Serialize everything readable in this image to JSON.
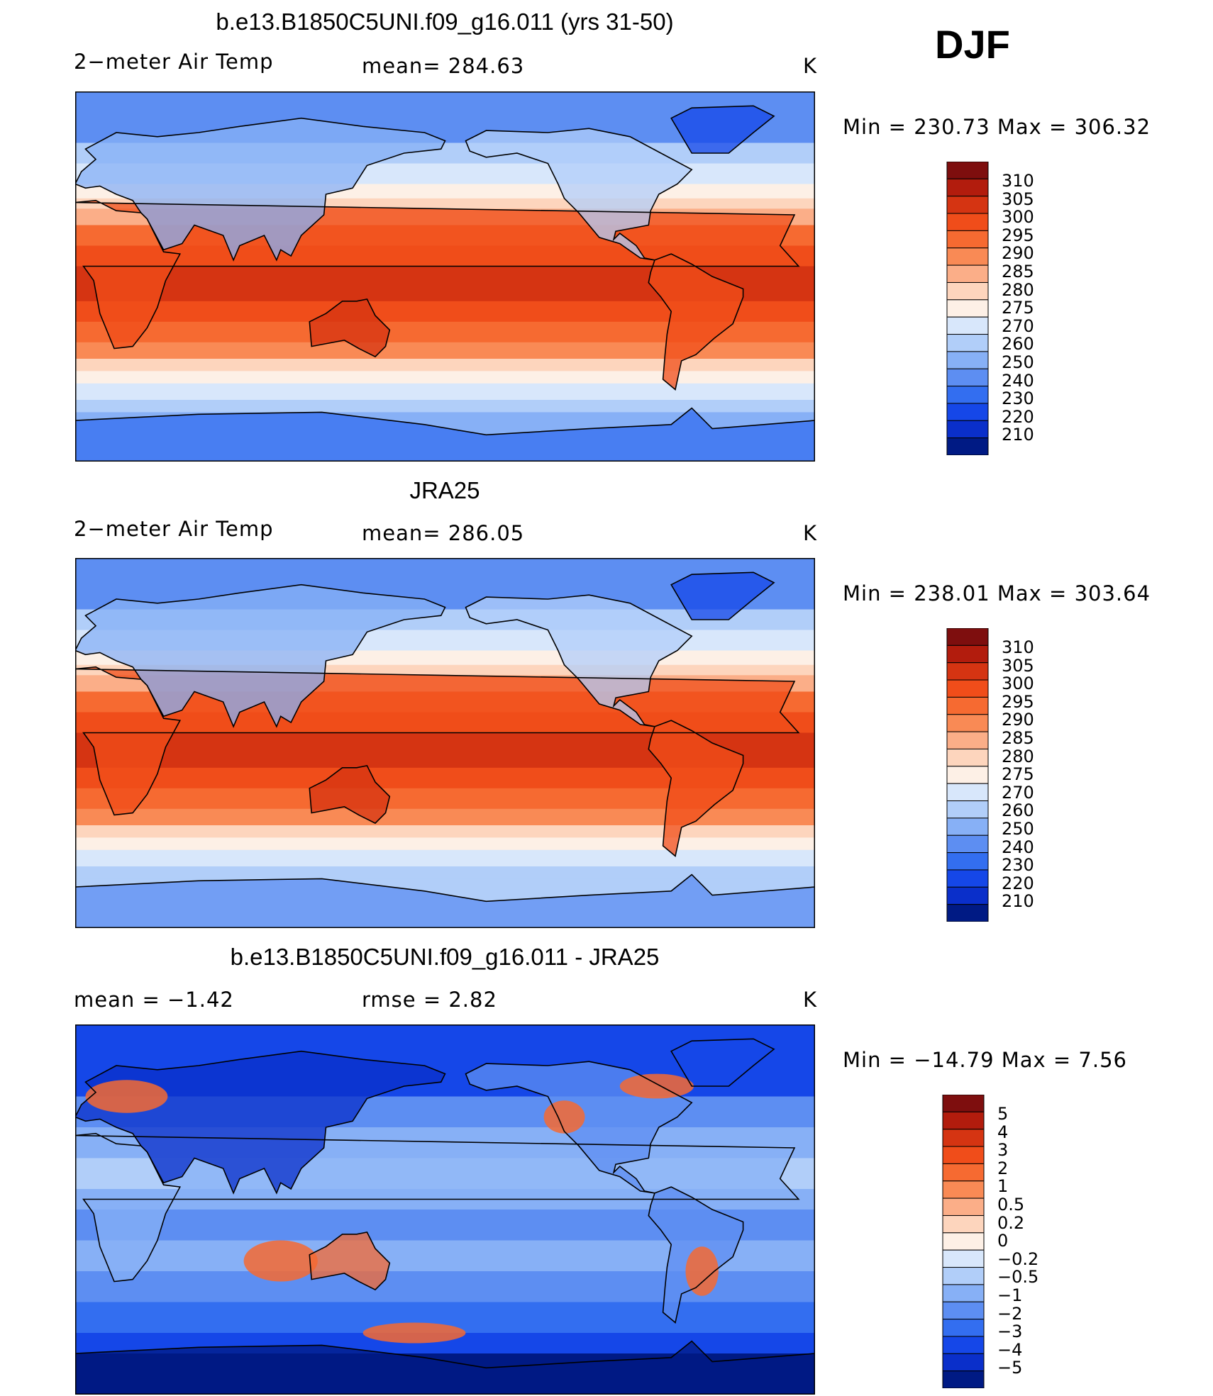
{
  "season": "DJF",
  "panels": [
    {
      "title": "b.e13.B1850C5UNI.f09_g16.011 (yrs 31-50)",
      "left_label": "2−meter Air Temp",
      "center_label": "mean=  284.63",
      "units": "K",
      "minmax": "Min  =  230.73  Max  =  306.32",
      "levels": [
        "310",
        "305",
        "300",
        "295",
        "290",
        "285",
        "280",
        "275",
        "270",
        "260",
        "250",
        "240",
        "230",
        "220",
        "210"
      ],
      "colors": [
        "#7e0e0e",
        "#b21c0d",
        "#d53412",
        "#f04d1a",
        "#f66a31",
        "#f98a55",
        "#fbae88",
        "#fdd5bd",
        "#fdf0e6",
        "#d8e7fb",
        "#b1cef9",
        "#87b0f6",
        "#5d8ef2",
        "#336ef0",
        "#1547e8",
        "#0a2fca",
        "#001a84"
      ],
      "map": {
        "ocean": "#f04d1a",
        "band_equator": "#d53412",
        "north_high": "#5d8ef2",
        "south_high": "#87b0f6",
        "land_cold": "#87b0f6",
        "land_warm": "#f66a31"
      }
    },
    {
      "title": "JRA25",
      "left_label": "2−meter Air Temp",
      "center_label": "mean=  286.05",
      "units": "K",
      "minmax": "Min  =  238.01  Max  =  303.64",
      "levels": [
        "310",
        "305",
        "300",
        "295",
        "290",
        "285",
        "280",
        "275",
        "270",
        "260",
        "250",
        "240",
        "230",
        "220",
        "210"
      ],
      "colors": [
        "#7e0e0e",
        "#b21c0d",
        "#d53412",
        "#f04d1a",
        "#f66a31",
        "#f98a55",
        "#fbae88",
        "#fdd5bd",
        "#fdf0e6",
        "#d8e7fb",
        "#b1cef9",
        "#87b0f6",
        "#5d8ef2",
        "#336ef0",
        "#1547e8",
        "#0a2fca",
        "#001a84"
      ],
      "map": {
        "ocean": "#f04d1a",
        "band_equator": "#d53412",
        "north_high": "#5d8ef2",
        "south_high": "#b1cef9",
        "land_cold": "#87b0f6",
        "land_warm": "#f66a31"
      }
    },
    {
      "title": "b.e13.B1850C5UNI.f09_g16.011 - JRA25",
      "left_label": "mean  =     −1.42",
      "center_label": "rmse  =      2.82",
      "units": "K",
      "minmax": "Min  =  −14.79  Max  =       7.56",
      "levels": [
        "5",
        "4",
        "3",
        "2",
        "1",
        "0.5",
        "0.2",
        "0",
        "−0.2",
        "−0.5",
        "−1",
        "−2",
        "−3",
        "−4",
        "−5"
      ],
      "colors": [
        "#7e0e0e",
        "#b21c0d",
        "#d53412",
        "#f04d1a",
        "#f66a31",
        "#f98a55",
        "#fbae88",
        "#fdd5bd",
        "#fdf0e6",
        "#d8e7fb",
        "#b1cef9",
        "#87b0f6",
        "#5d8ef2",
        "#336ef0",
        "#1547e8",
        "#0a2fca",
        "#001a84"
      ],
      "map": {
        "ocean": "#336ef0",
        "band_equator": "#5d8ef2",
        "north_high": "#001a84",
        "south_high": "#001a84",
        "land_cold": "#0a2fca",
        "land_warm": "#f66a31"
      }
    }
  ]
}
